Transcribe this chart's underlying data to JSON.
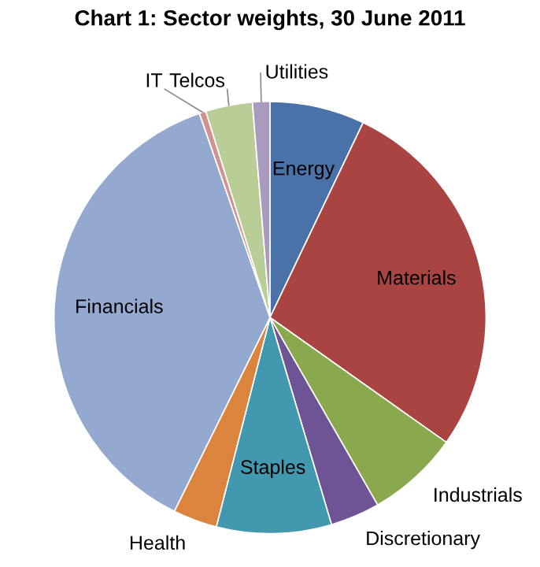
{
  "chart_data": {
    "type": "pie",
    "title": "Chart 1: Sector weights, 30 June 2011",
    "categories": [
      "Energy",
      "Materials",
      "Industrials",
      "Discretionary",
      "Staples",
      "Health",
      "Financials",
      "IT",
      "Telcos",
      "Utilities"
    ],
    "values": [
      7.1,
      27.7,
      6.9,
      3.7,
      8.6,
      3.3,
      37.4,
      0.5,
      3.5,
      1.3
    ],
    "colors": [
      "#4a72a8",
      "#a94443",
      "#8aa84e",
      "#6e5494",
      "#4298ae",
      "#db843d",
      "#93a9cf",
      "#d19392",
      "#b9cd96",
      "#a99bbd"
    ]
  }
}
